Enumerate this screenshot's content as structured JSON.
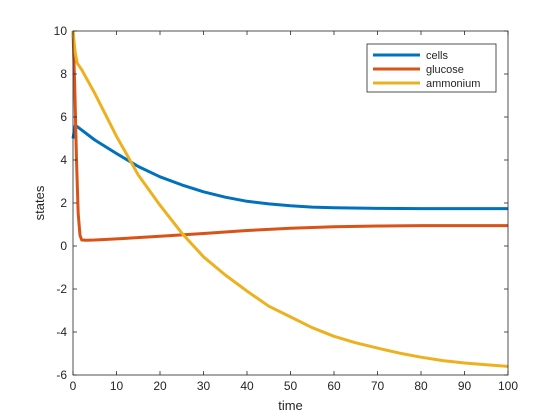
{
  "chart_data": {
    "type": "line",
    "xlabel": "time",
    "ylabel": "states",
    "xlim": [
      0,
      100
    ],
    "ylim": [
      -6,
      10
    ],
    "xticks": [
      0,
      10,
      20,
      30,
      40,
      50,
      60,
      70,
      80,
      90,
      100
    ],
    "yticks": [
      -6,
      -4,
      -2,
      0,
      2,
      4,
      6,
      8,
      10
    ],
    "grid": false,
    "legend_position": "top-right",
    "series": [
      {
        "name": "cells",
        "color": "#0072BD",
        "x": [
          0,
          0.5,
          1,
          5,
          10,
          15,
          20,
          25,
          30,
          35,
          40,
          45,
          50,
          55,
          60,
          70,
          80,
          90,
          100
        ],
        "y": [
          5.0,
          5.6,
          5.55,
          4.93,
          4.3,
          3.7,
          3.22,
          2.84,
          2.52,
          2.27,
          2.08,
          1.96,
          1.87,
          1.81,
          1.78,
          1.75,
          1.74,
          1.74,
          1.74
        ]
      },
      {
        "name": "glucose",
        "color": "#D95319",
        "x": [
          0,
          0.4,
          0.8,
          1.2,
          1.6,
          2.0,
          3,
          5,
          10,
          20,
          30,
          40,
          50,
          60,
          70,
          80,
          90,
          100
        ],
        "y": [
          10,
          7.5,
          4.0,
          1.5,
          0.5,
          0.28,
          0.27,
          0.28,
          0.33,
          0.45,
          0.58,
          0.72,
          0.83,
          0.9,
          0.93,
          0.95,
          0.95,
          0.95
        ]
      },
      {
        "name": "ammonium",
        "color": "#EDB120",
        "x": [
          0,
          0.5,
          1,
          2,
          5,
          10,
          15,
          20,
          25,
          30,
          35,
          40,
          45,
          50,
          55,
          60,
          65,
          70,
          75,
          80,
          85,
          90,
          95,
          100
        ],
        "y": [
          10,
          9.0,
          8.5,
          8.2,
          7.1,
          5.1,
          3.3,
          1.9,
          0.6,
          -0.5,
          -1.35,
          -2.1,
          -2.8,
          -3.3,
          -3.8,
          -4.2,
          -4.5,
          -4.75,
          -4.98,
          -5.17,
          -5.33,
          -5.44,
          -5.52,
          -5.6
        ]
      }
    ]
  }
}
